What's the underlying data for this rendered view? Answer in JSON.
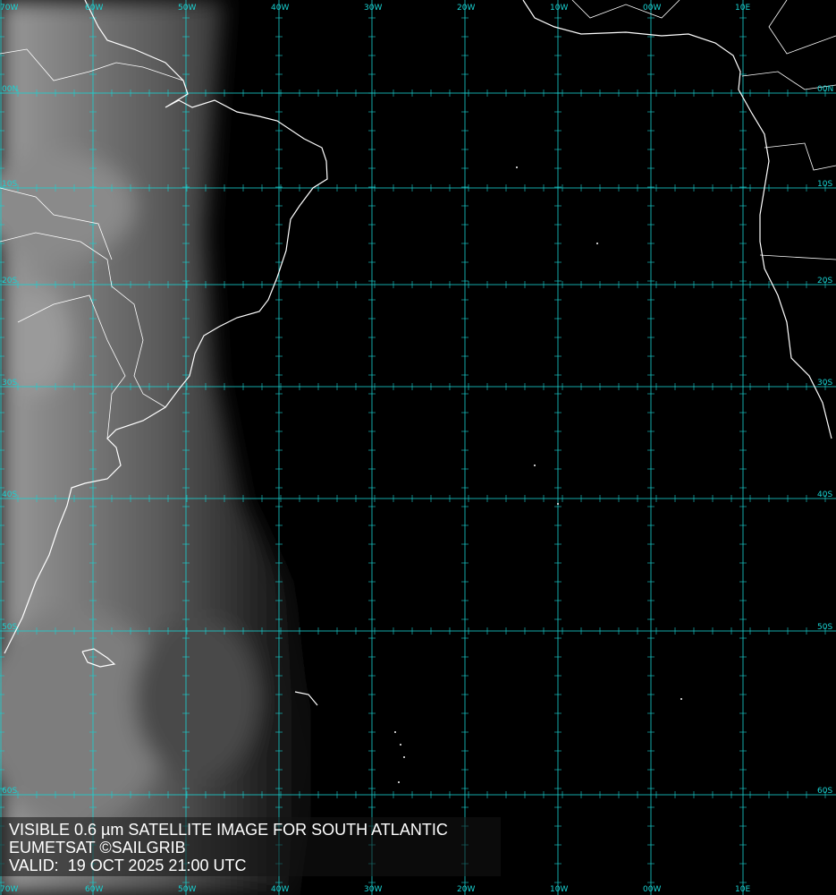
{
  "caption": {
    "line1": "VISIBLE 0.6 µm SATELLITE IMAGE FOR SOUTH ATLANTIC",
    "line2": "EUMETSAT ©SAILGRIB",
    "line3": "VALID:  19 OCT 2025 21:00 UTC"
  },
  "longitude_labels": [
    "70W",
    "60W",
    "50W",
    "40W",
    "30W",
    "20W",
    "10W",
    "00W",
    "10E"
  ],
  "latitude_labels": [
    "00N",
    "10S",
    "20S",
    "30S",
    "40S",
    "50S",
    "60S"
  ],
  "colors": {
    "grid": "#19d2d2",
    "coastline": "#ffffff",
    "background": "#000000"
  }
}
